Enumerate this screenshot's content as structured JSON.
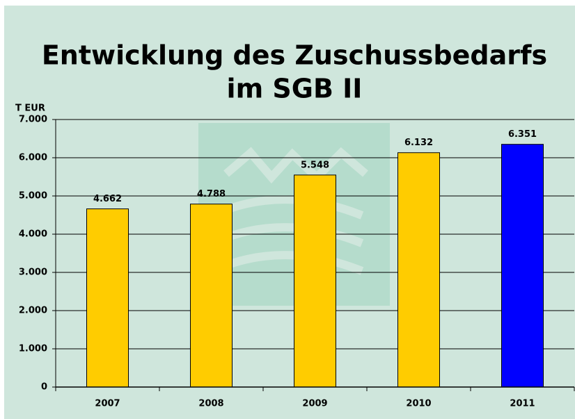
{
  "chart_data": {
    "type": "bar",
    "title": [
      "Entwicklung des Zuschussbedarfs",
      "im SGB II"
    ],
    "ylabel": "T EUR",
    "categories": [
      "2007",
      "2008",
      "2009",
      "2010",
      "2011"
    ],
    "values": [
      4662,
      4788,
      5548,
      6132,
      6351
    ],
    "value_labels": [
      "4.662",
      "4.788",
      "5.548",
      "6.132",
      "6.351"
    ],
    "colors": [
      "#ffcc00",
      "#ffcc00",
      "#ffcc00",
      "#ffcc00",
      "#0000ff"
    ],
    "ylim": [
      0,
      7000
    ],
    "yticks": [
      {
        "value": 0,
        "label": "0"
      },
      {
        "value": 1000,
        "label": "1.000"
      },
      {
        "value": 2000,
        "label": "2.000"
      },
      {
        "value": 3000,
        "label": "3.000"
      },
      {
        "value": 4000,
        "label": "4.000"
      },
      {
        "value": 5000,
        "label": "5.000"
      },
      {
        "value": 6000,
        "label": "6.000"
      },
      {
        "value": 7000,
        "label": "7.000"
      }
    ],
    "grid": true
  }
}
